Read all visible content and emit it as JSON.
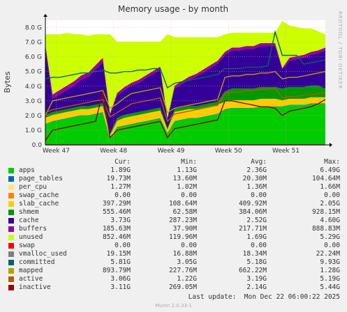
{
  "chart_data": {
    "type": "area",
    "title": "Memory usage - by month",
    "ylabel": "Bytes",
    "side_label": "RRDTOOL / TOBI OETIKER",
    "ylim": [
      0,
      8.5
    ],
    "y_unit": "G",
    "yticks": [
      "0.0",
      "1.0 G",
      "2.0 G",
      "3.0 G",
      "4.0 G",
      "5.0 G",
      "6.0 G",
      "7.0 G",
      "8.0 G"
    ],
    "ytick_values": [
      0,
      1,
      2,
      3,
      4,
      5,
      6,
      7,
      8
    ],
    "xticks": [
      "Week 47",
      "Week 48",
      "Week 49",
      "Week 50",
      "Week 51"
    ],
    "xtick_positions": [
      0.5,
      8.5,
      16.5,
      24.5,
      32.5
    ],
    "xlim": [
      -1,
      38
    ],
    "x": [
      -1,
      0,
      1,
      2,
      3,
      4,
      5,
      6,
      7,
      8,
      9,
      10,
      11,
      12,
      13,
      14,
      15,
      16,
      17,
      18,
      19,
      20,
      21,
      22,
      23,
      24,
      25,
      26,
      27,
      28,
      29,
      30,
      31,
      32,
      33,
      34,
      35,
      36,
      37,
      38
    ],
    "stack_series": [
      {
        "name": "apps",
        "color": "#00CC00",
        "values": [
          1.4,
          1.6,
          1.7,
          1.8,
          1.9,
          2.0,
          2.0,
          2.1,
          2.2,
          0.4,
          1.2,
          1.3,
          1.4,
          1.5,
          1.6,
          1.7,
          1.8,
          0.8,
          1.6,
          1.7,
          1.8,
          1.8,
          1.9,
          2.0,
          2.1,
          2.4,
          2.5,
          2.5,
          2.5,
          2.5,
          2.6,
          2.6,
          2.6,
          2.6,
          2.7,
          2.7,
          2.7,
          2.8,
          2.8,
          2.8
        ]
      },
      {
        "name": "page_tables",
        "color": "#0066B3",
        "values": [
          0.03,
          0.03,
          0.03,
          0.03,
          0.03,
          0.03,
          0.03,
          0.03,
          0.03,
          0.03,
          0.03,
          0.03,
          0.03,
          0.03,
          0.03,
          0.03,
          0.03,
          0.03,
          0.03,
          0.03,
          0.03,
          0.03,
          0.03,
          0.03,
          0.03,
          0.03,
          0.03,
          0.03,
          0.03,
          0.03,
          0.03,
          0.03,
          0.03,
          0.03,
          0.03,
          0.03,
          0.03,
          0.03,
          0.03,
          0.03
        ]
      },
      {
        "name": "per_cpu",
        "color": "#FFE680",
        "values": [
          0.01,
          0.01,
          0.01,
          0.01,
          0.01,
          0.01,
          0.01,
          0.01,
          0.01,
          0.01,
          0.01,
          0.01,
          0.01,
          0.01,
          0.01,
          0.01,
          0.01,
          0.01,
          0.01,
          0.01,
          0.01,
          0.01,
          0.01,
          0.01,
          0.01,
          0.01,
          0.01,
          0.01,
          0.01,
          0.01,
          0.01,
          0.01,
          0.01,
          0.01,
          0.01,
          0.01,
          0.01,
          0.01,
          0.01,
          0.01
        ]
      },
      {
        "name": "swap_cache",
        "color": "#FF8000",
        "values": [
          0,
          0,
          0,
          0,
          0,
          0,
          0,
          0,
          0,
          0,
          0,
          0,
          0,
          0,
          0,
          0,
          0,
          0,
          0,
          0,
          0,
          0,
          0,
          0,
          0,
          0,
          0,
          0,
          0,
          0,
          0,
          0,
          0,
          0,
          0,
          0,
          0,
          0,
          0,
          0
        ]
      },
      {
        "name": "slab_cache",
        "color": "#FFCC00",
        "values": [
          0.4,
          0.4,
          0.4,
          0.4,
          0.4,
          0.4,
          0.4,
          0.4,
          0.4,
          0.2,
          0.4,
          0.5,
          0.5,
          0.5,
          0.5,
          0.5,
          0.5,
          0.2,
          0.6,
          0.6,
          0.6,
          0.6,
          0.6,
          0.6,
          0.6,
          0.5,
          0.5,
          0.5,
          0.5,
          0.5,
          0.5,
          0.5,
          0.5,
          0.4,
          0.4,
          0.4,
          0.4,
          0.4,
          0.4,
          0.4
        ]
      },
      {
        "name": "shmem",
        "color": "#009900",
        "values": [
          0.2,
          0.2,
          0.2,
          0.2,
          0.2,
          0.2,
          0.2,
          0.2,
          0.2,
          0.1,
          0.2,
          0.2,
          0.2,
          0.2,
          0.2,
          0.2,
          0.2,
          0.1,
          0.2,
          0.2,
          0.2,
          0.2,
          0.2,
          0.2,
          0.2,
          0.7,
          0.8,
          0.8,
          0.8,
          0.8,
          0.8,
          0.8,
          0.8,
          0.8,
          0.8,
          0.8,
          0.8,
          0.8,
          0.8,
          0.6
        ]
      },
      {
        "name": "cache",
        "color": "#330099",
        "values": [
          4.6,
          0.9,
          1.1,
          1.3,
          1.5,
          1.8,
          2.0,
          2.4,
          2.8,
          1.3,
          1.5,
          1.7,
          1.9,
          2.0,
          2.2,
          2.4,
          2.6,
          0.6,
          1.4,
          1.6,
          1.8,
          2.0,
          2.2,
          2.4,
          2.6,
          2.5,
          2.6,
          2.6,
          2.7,
          2.7,
          2.8,
          2.8,
          2.8,
          1.3,
          1.8,
          1.9,
          2.0,
          2.1,
          2.2,
          2.6
        ]
      },
      {
        "name": "buffers",
        "color": "#990099",
        "values": [
          0.2,
          0.3,
          0.3,
          0.3,
          0.3,
          0.3,
          0.3,
          0.3,
          0.3,
          0.1,
          0.2,
          0.2,
          0.2,
          0.2,
          0.2,
          0.2,
          0.2,
          0.1,
          0.2,
          0.2,
          0.2,
          0.2,
          0.2,
          0.2,
          0.2,
          0.2,
          0.2,
          0.2,
          0.2,
          0.2,
          0.2,
          0.2,
          0.2,
          0.1,
          0.2,
          0.2,
          0.2,
          0.2,
          0.2,
          0.2
        ]
      },
      {
        "name": "unused",
        "color": "#CCFF00",
        "values": [
          0.7,
          4.1,
          3.8,
          3.6,
          3.2,
          2.8,
          2.5,
          2.1,
          1.6,
          5.4,
          3.5,
          3.1,
          2.8,
          2.6,
          2.3,
          2.0,
          1.7,
          5.7,
          3.3,
          3.0,
          2.7,
          2.5,
          2.2,
          1.9,
          1.6,
          1.2,
          1.0,
          1.0,
          0.9,
          0.9,
          0.7,
          0.7,
          0.7,
          3.2,
          2.2,
          2.0,
          1.8,
          1.6,
          1.3,
          0.9
        ]
      }
    ],
    "line_series": [
      {
        "name": "swap",
        "color": "#FF0000",
        "values": [
          0,
          0,
          0,
          0,
          0,
          0,
          0,
          0,
          0,
          0,
          0,
          0,
          0,
          0,
          0,
          0,
          0,
          0,
          0,
          0,
          0,
          0,
          0,
          0,
          0,
          0,
          0,
          0,
          0,
          0,
          0,
          0,
          0,
          0,
          0,
          0,
          0,
          0,
          0,
          0
        ]
      },
      {
        "name": "vmalloc_used",
        "color": "#808080",
        "values": [
          0.02,
          0.02,
          0.02,
          0.02,
          0.02,
          0.02,
          0.02,
          0.02,
          0.02,
          0.02,
          0.02,
          0.02,
          0.02,
          0.02,
          0.02,
          0.02,
          0.02,
          0.02,
          0.02,
          0.02,
          0.02,
          0.02,
          0.02,
          0.02,
          0.02,
          0.02,
          0.02,
          0.02,
          0.02,
          0.02,
          0.02,
          0.02,
          0.02,
          0.02,
          0.02,
          0.02,
          0.02,
          0.02,
          0.02,
          0.02
        ]
      },
      {
        "name": "committed",
        "color": "#006666",
        "values": [
          4.5,
          4.6,
          4.6,
          4.7,
          4.8,
          4.9,
          4.9,
          5.0,
          5.1,
          4.9,
          4.9,
          5.0,
          5.0,
          5.1,
          5.1,
          5.2,
          5.2,
          3.9,
          4.2,
          4.3,
          4.4,
          4.5,
          4.6,
          4.7,
          4.8,
          5.2,
          5.2,
          5.2,
          5.3,
          5.3,
          5.3,
          5.4,
          7.7,
          6.1,
          6.1,
          6.1,
          5.5,
          5.6,
          5.7,
          5.8
        ]
      },
      {
        "name": "mapped",
        "color": "#B3A100",
        "values": [
          2.0,
          3.0,
          3.1,
          3.2,
          3.3,
          3.4,
          3.5,
          3.6,
          3.7,
          2.5,
          2.8,
          3.2,
          3.5,
          3.6,
          3.7,
          3.8,
          3.9,
          2.2,
          2.5,
          2.6,
          2.7,
          2.8,
          2.9,
          3.0,
          3.1,
          4.6,
          4.7,
          4.7,
          4.8,
          4.8,
          4.9,
          4.9,
          5.0,
          4.5,
          4.6,
          4.6,
          4.7,
          4.8,
          4.9,
          5.0
        ]
      },
      {
        "name": "active",
        "color": "#B35C00",
        "values": [
          2.2,
          2.4,
          2.5,
          2.6,
          2.7,
          2.8,
          2.9,
          3.0,
          3.1,
          1.9,
          2.2,
          2.5,
          2.8,
          2.9,
          3.0,
          3.1,
          3.2,
          1.6,
          2.1,
          2.2,
          2.3,
          2.4,
          2.5,
          2.6,
          2.7,
          3.5,
          3.6,
          3.6,
          3.7,
          3.7,
          3.8,
          3.8,
          3.9,
          3.2,
          3.3,
          3.3,
          3.4,
          3.4,
          3.5,
          3.6
        ]
      },
      {
        "name": "inactive",
        "color": "#990000",
        "values": [
          0.3,
          1.0,
          1.1,
          1.2,
          1.3,
          1.4,
          1.5,
          1.6,
          3.6,
          0.5,
          1.0,
          1.1,
          1.2,
          1.3,
          1.4,
          1.5,
          1.6,
          0.5,
          1.1,
          1.2,
          1.3,
          1.4,
          1.5,
          1.6,
          1.7,
          3.0,
          3.0,
          2.9,
          2.8,
          2.7,
          2.6,
          2.6,
          2.5,
          2.0,
          2.3,
          2.4,
          2.5,
          2.6,
          2.8,
          3.1
        ]
      }
    ],
    "plot_background": "#CCFF00",
    "grid": true,
    "grid_color": "#FF9999"
  },
  "legend": {
    "headers": {
      "cur": "Cur:",
      "min": "Min:",
      "avg": "Avg:",
      "max": "Max:"
    },
    "rows": [
      {
        "name": "apps",
        "color": "#00CC00",
        "cur": "1.89G",
        "min": "1.13G",
        "avg": "2.36G",
        "max": "6.49G"
      },
      {
        "name": "page_tables",
        "color": "#0066B3",
        "cur": "19.73M",
        "min": "13.60M",
        "avg": "20.30M",
        "max": "104.64M"
      },
      {
        "name": "per_cpu",
        "color": "#FFE680",
        "cur": "1.27M",
        "min": "1.02M",
        "avg": "1.36M",
        "max": "1.66M"
      },
      {
        "name": "swap_cache",
        "color": "#FF8000",
        "cur": "0.00",
        "min": "0.00",
        "avg": "0.00",
        "max": "0.00"
      },
      {
        "name": "slab_cache",
        "color": "#FFCC00",
        "cur": "397.29M",
        "min": "108.64M",
        "avg": "409.92M",
        "max": "2.05G"
      },
      {
        "name": "shmem",
        "color": "#009900",
        "cur": "555.46M",
        "min": "62.58M",
        "avg": "384.06M",
        "max": "928.15M"
      },
      {
        "name": "cache",
        "color": "#330099",
        "cur": "3.73G",
        "min": "287.23M",
        "avg": "2.52G",
        "max": "4.60G"
      },
      {
        "name": "buffers",
        "color": "#990099",
        "cur": "185.63M",
        "min": "37.90M",
        "avg": "217.71M",
        "max": "888.83M"
      },
      {
        "name": "unused",
        "color": "#CCFF00",
        "cur": "852.46M",
        "min": "119.96M",
        "avg": "1.69G",
        "max": "5.29G"
      },
      {
        "name": "swap",
        "color": "#FF0000",
        "cur": "0.00",
        "min": "0.00",
        "avg": "0.00",
        "max": "0.00"
      },
      {
        "name": "vmalloc_used",
        "color": "#808080",
        "cur": "19.15M",
        "min": "16.88M",
        "avg": "18.34M",
        "max": "22.24M"
      },
      {
        "name": "committed",
        "color": "#006666",
        "cur": "5.81G",
        "min": "3.05G",
        "avg": "5.18G",
        "max": "9.93G"
      },
      {
        "name": "mapped",
        "color": "#B3A100",
        "cur": "893.79M",
        "min": "227.76M",
        "avg": "662.22M",
        "max": "1.28G"
      },
      {
        "name": "active",
        "color": "#B35C00",
        "cur": "3.06G",
        "min": "1.22G",
        "avg": "3.19G",
        "max": "5.19G"
      },
      {
        "name": "inactive",
        "color": "#990000",
        "cur": "3.11G",
        "min": "269.05M",
        "avg": "2.14G",
        "max": "5.44G"
      }
    ]
  },
  "footer": {
    "last_update": "Last update:  Mon Dec 22 06:00:22 2025",
    "version": "Munin 2.0.33-1"
  }
}
